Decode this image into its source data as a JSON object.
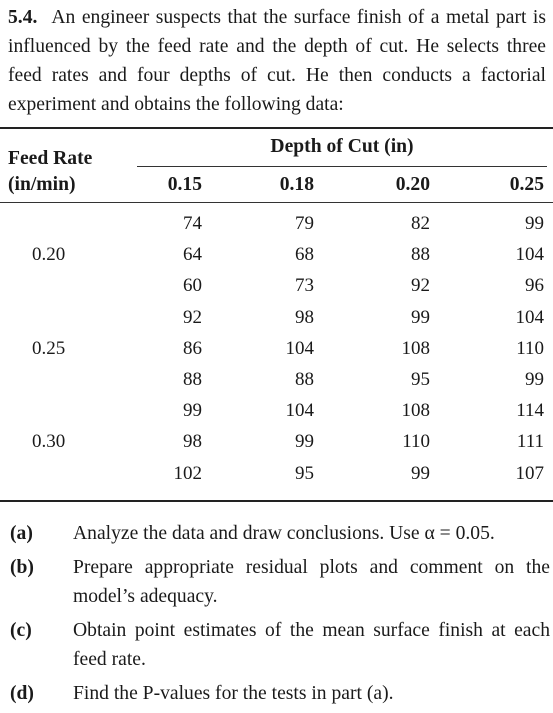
{
  "problem": {
    "number": "5.4.",
    "text": "An engineer suspects that the surface finish of a metal part is influenced by the feed rate and the depth of cut. He selects three feed rates and four depths of cut. He then conducts a factorial experiment and obtains the following data:"
  },
  "table": {
    "row_header_line1": "Feed Rate",
    "row_header_line2": "(in/min)",
    "group_header": "Depth of Cut (in)",
    "columns": [
      "0.15",
      "0.18",
      "0.20",
      "0.25"
    ],
    "groups": [
      {
        "feed_rate": "0.20",
        "rows": [
          [
            "74",
            "79",
            "82",
            "99"
          ],
          [
            "64",
            "68",
            "88",
            "104"
          ],
          [
            "60",
            "73",
            "92",
            "96"
          ]
        ]
      },
      {
        "feed_rate": "0.25",
        "rows": [
          [
            "92",
            "98",
            "99",
            "104"
          ],
          [
            "86",
            "104",
            "108",
            "110"
          ],
          [
            "88",
            "88",
            "95",
            "99"
          ]
        ]
      },
      {
        "feed_rate": "0.30",
        "rows": [
          [
            "99",
            "104",
            "108",
            "114"
          ],
          [
            "98",
            "99",
            "110",
            "111"
          ],
          [
            "102",
            "95",
            "99",
            "107"
          ]
        ]
      }
    ]
  },
  "parts": [
    {
      "label": "(a)",
      "text": "Analyze the data and draw conclusions. Use α = 0.05."
    },
    {
      "label": "(b)",
      "text": "Prepare appropriate residual plots and comment on the model’s adequacy."
    },
    {
      "label": "(c)",
      "text": "Obtain point estimates of the mean surface finish at each feed rate."
    },
    {
      "label": "(d)",
      "text": "Find the P-values for the tests in part (a)."
    }
  ]
}
